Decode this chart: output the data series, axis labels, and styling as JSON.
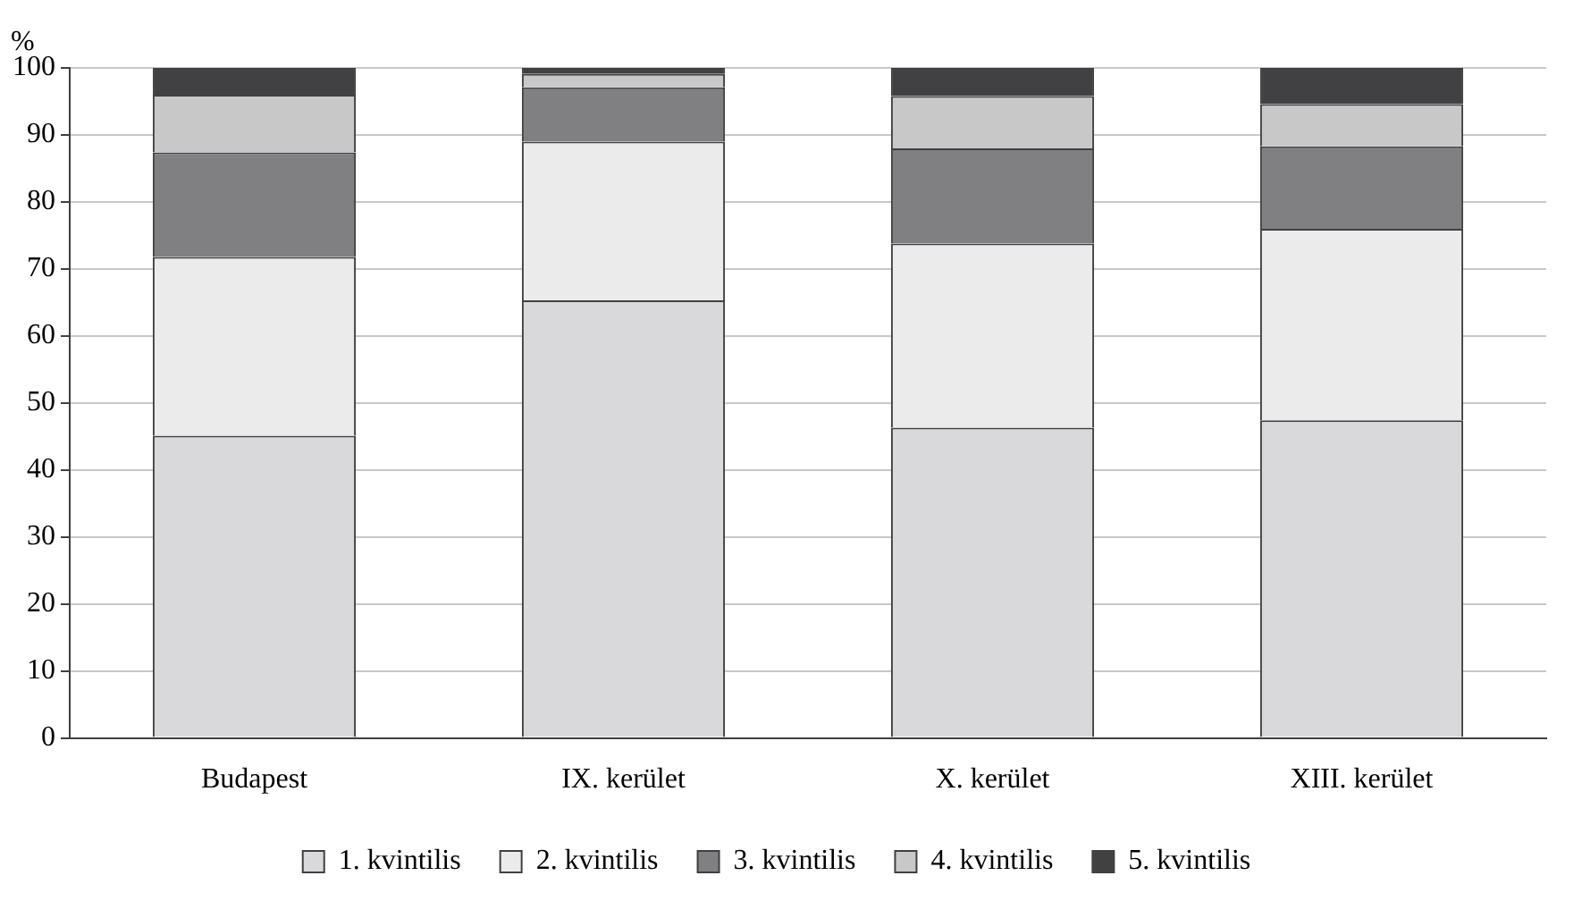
{
  "chart_data": {
    "type": "bar",
    "stacked": true,
    "ylabel": "%",
    "categories": [
      "Budapest",
      "IX. kerület",
      "X. kerület",
      "XIII. kerület"
    ],
    "series": [
      {
        "name": "1. kvintilis",
        "color": "#d9d9db",
        "values": [
          45.1,
          65.3,
          46.3,
          47.4
        ]
      },
      {
        "name": "2. kvintilis",
        "color": "#ebebeb",
        "values": [
          26.7,
          23.7,
          27.5,
          28.6
        ]
      },
      {
        "name": "3. kvintilis",
        "color": "#808083",
        "values": [
          15.6,
          8.1,
          14.2,
          12.3
        ]
      },
      {
        "name": "4. kvintilis",
        "color": "#c8c8c8",
        "values": [
          8.6,
          2.0,
          7.8,
          6.3
        ]
      },
      {
        "name": "5. kvintilis",
        "color": "#414042",
        "values": [
          4.0,
          0.9,
          4.2,
          5.4
        ]
      }
    ],
    "ylim": [
      0,
      100
    ],
    "yticks": [
      0,
      10,
      20,
      30,
      40,
      50,
      60,
      70,
      80,
      90,
      100
    ],
    "grid": "y",
    "legend": "bottom"
  }
}
